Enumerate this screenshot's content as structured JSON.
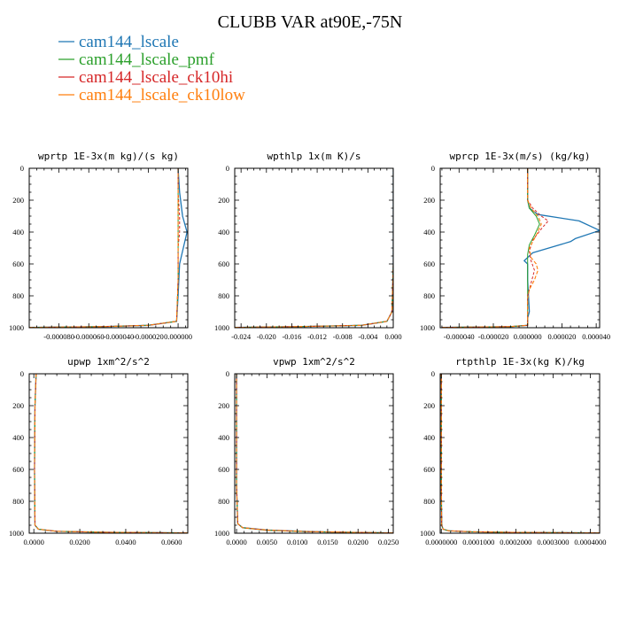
{
  "title": "CLUBB VAR at90E,-75N",
  "colors": {
    "cam144_lscale": "#1f77b4",
    "cam144_lscale_pmf": "#2ca02c",
    "cam144_lscale_ck10hi": "#d62728",
    "cam144_lscale_ck10low": "#ff7f0e"
  },
  "legend": [
    {
      "name": "cam144_lscale",
      "color": "#1f77b4"
    },
    {
      "name": "cam144_lscale_pmf",
      "color": "#2ca02c"
    },
    {
      "name": "cam144_lscale_ck10hi",
      "color": "#d62728"
    },
    {
      "name": "cam144_lscale_ck10low",
      "color": "#ff7f0e"
    }
  ],
  "chart_data": [
    {
      "type": "line",
      "title": "wprtp  1E-3x(m kg)/(s kg)",
      "xlim": [
        -0.0001,
        6.5e-06
      ],
      "ylim": [
        1000,
        0
      ],
      "xticks": [
        "-0.000080",
        "-0.000060",
        "-0.000040",
        "-0.000020",
        "0.000000"
      ],
      "xtick_values": [
        -8e-05,
        -6e-05,
        -4e-05,
        -2e-05,
        0
      ],
      "yticks": [
        "0",
        "200",
        "400",
        "600",
        "800",
        "1000"
      ],
      "series": [
        {
          "x": [
            0.0,
            1e-06,
            3e-06,
            6e-06,
            4e-06,
            1e-06,
            0.0,
            -1e-06,
            -2e-05,
            -5e-05,
            -0.0001
          ],
          "y": [
            0,
            150,
            300,
            400,
            480,
            600,
            800,
            960,
            985,
            993,
            998
          ]
        },
        {
          "x": [
            0.0,
            0.0,
            0.0,
            0.0,
            0.0,
            0.0,
            -1e-06,
            -2e-05,
            -5e-05,
            -0.0001
          ],
          "y": [
            0,
            150,
            300,
            400,
            500,
            700,
            960,
            985,
            993,
            998
          ]
        },
        {
          "x": [
            0.0,
            0.0,
            1e-06,
            1e-06,
            0.0,
            0.0,
            -1e-06,
            -2e-05,
            -5e-05,
            -0.0001
          ],
          "y": [
            0,
            150,
            300,
            400,
            500,
            700,
            960,
            985,
            993,
            998
          ]
        },
        {
          "x": [
            0.0,
            0.0,
            0.0,
            0.0,
            0.0,
            0.0,
            -1e-06,
            -2e-05,
            -5e-05,
            -0.0001
          ],
          "y": [
            0,
            150,
            300,
            400,
            500,
            700,
            960,
            985,
            993,
            998
          ]
        }
      ]
    },
    {
      "type": "line",
      "title": "wpthlp  1x(m K)/s",
      "xlim": [
        -0.025,
        0.0
      ],
      "ylim": [
        1000,
        0
      ],
      "xticks": [
        "-0.024",
        "-0.020",
        "-0.016",
        "-0.012",
        "-0.008",
        "-0.004",
        "0.000"
      ],
      "xtick_values": [
        -0.024,
        -0.02,
        -0.016,
        -0.012,
        -0.008,
        -0.004,
        0.0
      ],
      "yticks": [
        "0",
        "200",
        "400",
        "600",
        "800",
        "1000"
      ],
      "series": [
        {
          "x": [
            0.0,
            0.0,
            0.0,
            -0.0002,
            -0.001,
            -0.005,
            -0.015,
            -0.025
          ],
          "y": [
            0,
            300,
            600,
            900,
            960,
            985,
            993,
            998
          ]
        },
        {
          "x": [
            0.0,
            0.0,
            0.0,
            -0.0002,
            -0.001,
            -0.005,
            -0.015,
            -0.025
          ],
          "y": [
            0,
            300,
            600,
            900,
            960,
            985,
            993,
            998
          ]
        },
        {
          "x": [
            0.0,
            0.0,
            0.0,
            -0.0002,
            -0.001,
            -0.005,
            -0.015,
            -0.025
          ],
          "y": [
            0,
            300,
            600,
            900,
            960,
            985,
            993,
            998
          ]
        },
        {
          "x": [
            0.0,
            0.0,
            0.0,
            -0.0002,
            -0.001,
            -0.005,
            -0.015,
            -0.025
          ],
          "y": [
            0,
            300,
            600,
            900,
            960,
            985,
            993,
            998
          ]
        }
      ]
    },
    {
      "type": "line",
      "title": "wprcp  1E-3x(m/s) (kg/kg)",
      "xlim": [
        -5.1e-05,
        4.2e-05
      ],
      "ylim": [
        1000,
        0
      ],
      "xticks": [
        "-0.000040",
        "-0.000020",
        "0.000000",
        "0.000020",
        "0.000040"
      ],
      "xtick_values": [
        -4e-05,
        -2e-05,
        0,
        2e-05,
        4e-05
      ],
      "yticks": [
        "0",
        "200",
        "400",
        "600",
        "800",
        "1000"
      ],
      "series": [
        {
          "x": [
            0.0,
            0.0,
            1e-06,
            6e-06,
            3e-05,
            4.2e-05,
            2.8e-05,
            2.5e-05,
            3e-06,
            -2e-06,
            0.0,
            0.0,
            1e-06,
            0.0,
            0.0,
            -1e-05,
            -3e-05,
            -5e-05
          ],
          "y": [
            0,
            200,
            250,
            290,
            330,
            390,
            440,
            460,
            530,
            580,
            600,
            700,
            900,
            940,
            985,
            993,
            996,
            998
          ]
        },
        {
          "x": [
            0.0,
            0.0,
            1e-06,
            5e-06,
            7e-06,
            4e-06,
            1e-06,
            0.0,
            0.0,
            0.0,
            -1e-05,
            -3e-05,
            -5e-05
          ],
          "y": [
            0,
            200,
            250,
            300,
            350,
            420,
            480,
            540,
            700,
            985,
            993,
            996,
            998
          ]
        },
        {
          "x": [
            0.0,
            0.0,
            3e-06,
            8e-06,
            1.2e-05,
            8e-06,
            3e-06,
            1e-06,
            2e-06,
            4e-06,
            2e-06,
            0.0,
            0.0,
            -1e-05,
            -3e-05,
            -5e-05
          ],
          "y": [
            0,
            200,
            250,
            300,
            330,
            380,
            450,
            520,
            580,
            640,
            720,
            800,
            985,
            993,
            996,
            998
          ]
        },
        {
          "x": [
            0.0,
            0.0,
            2e-06,
            6e-06,
            8e-06,
            5e-06,
            1e-06,
            2e-06,
            5e-06,
            6e-06,
            4e-06,
            1e-06,
            0.0,
            0.0,
            -1e-05,
            -3e-05,
            -5e-05
          ],
          "y": [
            0,
            200,
            250,
            300,
            350,
            420,
            500,
            560,
            600,
            640,
            700,
            760,
            820,
            985,
            993,
            996,
            998
          ]
        }
      ]
    },
    {
      "type": "line",
      "title": "upwp  1xm^2/s^2",
      "xlim": [
        -0.002,
        0.067
      ],
      "ylim": [
        1000,
        0
      ],
      "xticks": [
        "0.0000",
        "0.0200",
        "0.0400",
        "0.0600"
      ],
      "xtick_values": [
        0,
        0.02,
        0.04,
        0.06
      ],
      "yticks": [
        "0",
        "200",
        "400",
        "600",
        "800",
        "1000"
      ],
      "series": [
        {
          "x": [
            0.001,
            0.0005,
            0.0003,
            0.0005,
            0.002,
            0.01,
            0.03,
            0.067
          ],
          "y": [
            0,
            200,
            600,
            950,
            975,
            988,
            994,
            998
          ]
        },
        {
          "x": [
            0.001,
            0.0005,
            0.0003,
            0.0005,
            0.002,
            0.01,
            0.03,
            0.067
          ],
          "y": [
            0,
            200,
            600,
            950,
            975,
            988,
            994,
            998
          ]
        },
        {
          "x": [
            0.001,
            0.0005,
            0.0003,
            0.0005,
            0.002,
            0.01,
            0.03,
            0.067
          ],
          "y": [
            0,
            200,
            600,
            950,
            975,
            988,
            994,
            998
          ]
        },
        {
          "x": [
            0.001,
            0.0005,
            0.0003,
            0.0005,
            0.002,
            0.01,
            0.03,
            0.067
          ],
          "y": [
            0,
            200,
            600,
            950,
            975,
            988,
            994,
            998
          ]
        }
      ]
    },
    {
      "type": "line",
      "title": "vpwp  1xm^2/s^2",
      "xlim": [
        -0.0003,
        0.0258
      ],
      "ylim": [
        1000,
        0
      ],
      "xticks": [
        "0.0000",
        "0.0050",
        "0.0100",
        "0.0150",
        "0.0200",
        "0.0250"
      ],
      "xtick_values": [
        0,
        0.005,
        0.01,
        0.015,
        0.02,
        0.025
      ],
      "yticks": [
        "0",
        "200",
        "400",
        "600",
        "800",
        "1000"
      ],
      "series": [
        {
          "x": [
            0.0,
            0.0,
            0.0,
            0.0002,
            0.001,
            0.005,
            0.012,
            0.02,
            0.0258
          ],
          "y": [
            0,
            300,
            700,
            940,
            965,
            980,
            990,
            995,
            998
          ]
        },
        {
          "x": [
            0.0,
            0.0,
            0.0,
            0.0002,
            0.001,
            0.005,
            0.012,
            0.02,
            0.0258
          ],
          "y": [
            0,
            300,
            700,
            940,
            967,
            982,
            991,
            995,
            998
          ]
        },
        {
          "x": [
            0.0,
            0.0,
            0.0,
            0.0002,
            0.001,
            0.005,
            0.012,
            0.02,
            0.0258
          ],
          "y": [
            0,
            300,
            700,
            940,
            966,
            981,
            990,
            995,
            998
          ]
        },
        {
          "x": [
            0.0,
            0.0,
            0.0,
            0.0002,
            0.001,
            0.005,
            0.012,
            0.02,
            0.0258
          ],
          "y": [
            0,
            300,
            700,
            940,
            965,
            980,
            990,
            995,
            998
          ]
        }
      ]
    },
    {
      "type": "line",
      "title": "rtpthlp  1E-3x(kg K)/kg",
      "xlim": [
        -3e-06,
        0.000425
      ],
      "ylim": [
        1000,
        0
      ],
      "xticks": [
        "0.0000000",
        "0.0001000",
        "0.0002000",
        "0.0003000",
        "0.0004000"
      ],
      "xtick_values": [
        0,
        0.0001,
        0.0002,
        0.0003,
        0.0004
      ],
      "yticks": [
        "0",
        "200",
        "400",
        "600",
        "800",
        "1000"
      ],
      "series": [
        {
          "x": [
            0.0,
            0.0,
            0.0,
            1e-06,
            5e-06,
            2e-05,
            8e-05,
            0.0002,
            0.000425
          ],
          "y": [
            0,
            300,
            700,
            950,
            975,
            985,
            991,
            995,
            998
          ]
        },
        {
          "x": [
            0.0,
            0.0,
            0.0,
            1e-06,
            5e-06,
            2e-05,
            8e-05,
            0.0002,
            0.000425
          ],
          "y": [
            0,
            300,
            700,
            950,
            975,
            985,
            991,
            995,
            998
          ]
        },
        {
          "x": [
            0.0,
            0.0,
            0.0,
            1e-06,
            5e-06,
            2e-05,
            8e-05,
            0.0002,
            0.000425
          ],
          "y": [
            0,
            300,
            700,
            950,
            975,
            985,
            991,
            995,
            998
          ]
        },
        {
          "x": [
            0.0,
            0.0,
            0.0,
            1e-06,
            5e-06,
            2e-05,
            8e-05,
            0.0002,
            0.000425
          ],
          "y": [
            0,
            300,
            700,
            950,
            975,
            985,
            991,
            995,
            998
          ]
        }
      ]
    }
  ]
}
